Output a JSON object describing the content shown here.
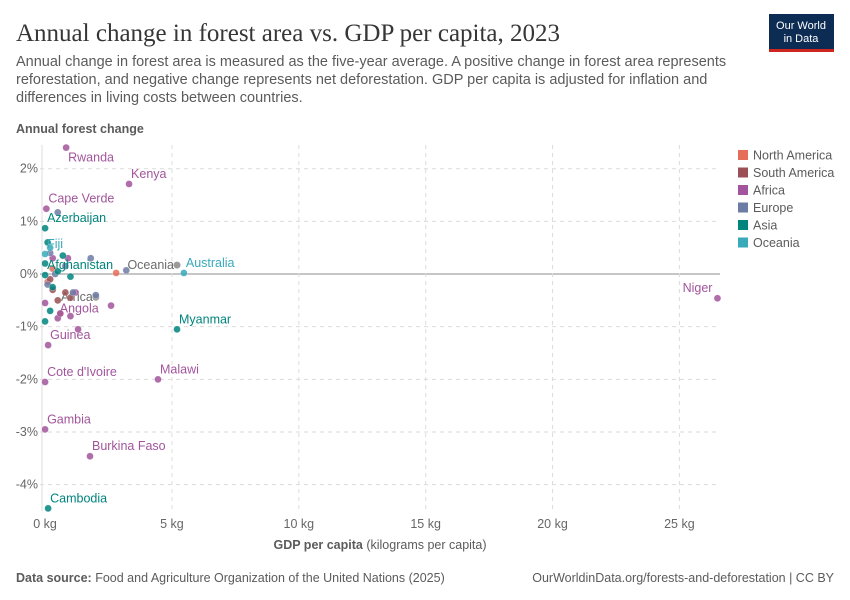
{
  "chart_data": {
    "type": "scatter",
    "title": "Annual change in forest area vs. GDP per capita, 2023",
    "subtitle": [
      "Annual change in forest area is measured as the five-year average. A positive change in forest area represents",
      "reforestation, and negative change represents net deforestation. GDP per capita is adjusted for inflation and",
      "differences in living costs between countries."
    ],
    "y_label": "Annual forest change",
    "x_label": "GDP per capita",
    "x_label_unit": "(kilograms per capita)",
    "xlim": [
      -0.2,
      26.6
    ],
    "ylim": [
      -4.5,
      2.45
    ],
    "xticks": [
      {
        "value": 0,
        "label": "0 kg"
      },
      {
        "value": 5,
        "label": "5 kg"
      },
      {
        "value": 10,
        "label": "10 kg"
      },
      {
        "value": 15,
        "label": "15 kg"
      },
      {
        "value": 20,
        "label": "20 kg"
      },
      {
        "value": 25,
        "label": "25 kg"
      }
    ],
    "yticks": [
      {
        "value": -4,
        "label": "-4%"
      },
      {
        "value": -3,
        "label": "-3%"
      },
      {
        "value": -2,
        "label": "-2%"
      },
      {
        "value": -1,
        "label": "-1%"
      },
      {
        "value": 0,
        "label": "0%"
      },
      {
        "value": 1,
        "label": "1%"
      },
      {
        "value": 2,
        "label": "2%"
      }
    ],
    "grid": true,
    "legend": "right",
    "series": [
      {
        "name": "North America",
        "color": "#e56e5a",
        "x": [
          0.1,
          0.3,
          2.8,
          0.6
        ],
        "y": [
          -0.15,
          0.1,
          0.02,
          -0.75
        ],
        "labels": [
          null,
          null,
          null,
          null
        ]
      },
      {
        "name": "South America",
        "color": "#9a5054",
        "x": [
          0.5,
          0.8,
          0.3,
          1.0,
          0.2
        ],
        "y": [
          -0.5,
          -0.35,
          -0.3,
          -0.45,
          -0.1
        ],
        "labels": [
          null,
          null,
          null,
          null,
          null
        ]
      },
      {
        "name": "Africa",
        "color": "#a2559c",
        "x": [
          0.83,
          3.31,
          0.05,
          26.5,
          0.5,
          0.12,
          4.45,
          0.0,
          0.0,
          1.77,
          0.3,
          1.3,
          0.6,
          1.0,
          2.6,
          0.9,
          0.0,
          1.2
        ],
        "y": [
          2.4,
          1.71,
          1.24,
          -0.46,
          -0.84,
          -1.35,
          -2.0,
          -2.05,
          -2.95,
          -3.46,
          0.3,
          -1.05,
          -0.75,
          -0.8,
          -0.6,
          0.3,
          -0.55,
          -0.35
        ],
        "labels": [
          "Rwanda",
          "Kenya",
          "Cape Verde",
          "Niger",
          "Angola",
          "Guinea",
          "Malawi",
          "Cote d'Ivoire",
          "Gambia",
          "Burkina Faso",
          null,
          null,
          null,
          null,
          null,
          null,
          null,
          null
        ]
      },
      {
        "name": "Europe",
        "color": "#6d7ca5",
        "x": [
          0.5,
          1.8,
          0.2,
          0.8,
          2.0,
          1.1,
          3.2,
          0.4,
          0.1
        ],
        "y": [
          1.17,
          0.3,
          0.4,
          0.15,
          -0.4,
          -0.35,
          0.07,
          0.0,
          -0.2
        ],
        "labels": [
          null,
          null,
          null,
          null,
          null,
          null,
          null,
          null,
          null
        ]
      },
      {
        "name": "Asia",
        "color": "#00847e",
        "x": [
          0.0,
          0.0,
          5.2,
          0.12,
          0.0,
          0.2,
          0.5,
          1.0,
          0.1,
          0.0,
          0.3,
          0.7
        ],
        "y": [
          0.87,
          -0.02,
          -1.05,
          -4.45,
          -0.9,
          -0.7,
          0.05,
          -0.05,
          0.6,
          0.2,
          -0.25,
          0.35
        ],
        "labels": [
          "Azerbaijan",
          "Afghanistan",
          "Myanmar",
          "Cambodia",
          null,
          null,
          null,
          null,
          null,
          null,
          null,
          null
        ]
      },
      {
        "name": "Oceania",
        "color": "#38aaba",
        "x": [
          0.0,
          5.47,
          0.2
        ],
        "y": [
          0.38,
          0.02,
          0.5
        ],
        "labels": [
          "Fiji",
          "Australia",
          null
        ]
      }
    ],
    "aggregates": [
      {
        "text": "Oceania",
        "x": 5.2,
        "y": 0.17
      },
      {
        "text": "Africa",
        "x": 2.0,
        "y": -0.44
      }
    ],
    "source_label": "Data source:",
    "source": "Food and Agriculture Organization of the United Nations (2025)",
    "url": "OurWorldinData.org/forests-and-deforestation | CC BY",
    "logo": [
      "Our World",
      "in Data"
    ]
  }
}
